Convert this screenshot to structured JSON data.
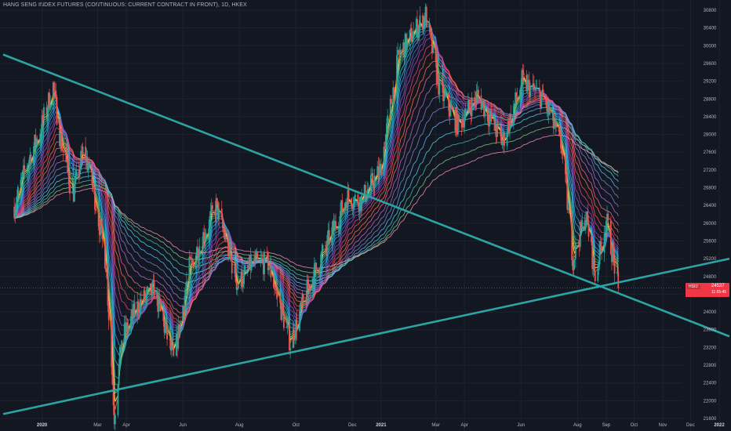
{
  "title": "HANG SENG INDEX FUTURES (CONTINUOUS: CURRENT CONTRACT IN FRONT), 1D, HKEX",
  "colors": {
    "background": "#131722",
    "grid": "#1e222d",
    "up": "#26a69a",
    "down": "#ef5350",
    "trendline": "#2ca4a4",
    "axis_text": "#b2b5be",
    "price_line": "#f23645"
  },
  "current_price": {
    "symbol": "HSI1!",
    "value": "24537",
    "countdown": "11:55:45",
    "level": 24537
  },
  "chart_data": {
    "type": "candlestick",
    "title": "HANG SENG INDEX FUTURES (CONTINUOUS: CURRENT CONTRACT IN FRONT), 1D, HKEX",
    "ylim": [
      21600,
      30850
    ],
    "y_ticks": [
      21600,
      22000,
      22400,
      22800,
      23200,
      23600,
      24000,
      24400,
      24800,
      25200,
      25600,
      26000,
      26400,
      26800,
      27200,
      27600,
      28000,
      28400,
      28800,
      29200,
      29600,
      30000,
      30400,
      30800
    ],
    "x_ticks": [
      "2020",
      "Mar",
      "Apr",
      "Jun",
      "Aug",
      "Oct",
      "Dec",
      "2021",
      "Mar",
      "Apr",
      "Jun",
      "Aug",
      "Sep",
      "Oct",
      "Nov",
      "Dec",
      "2022"
    ],
    "x_tick_dates": [
      "2020-01-01",
      "2020-03-01",
      "2020-04-01",
      "2020-06-01",
      "2020-08-01",
      "2020-10-01",
      "2020-12-01",
      "2021-01-01",
      "2021-03-01",
      "2021-04-01",
      "2021-06-01",
      "2021-08-01",
      "2021-09-01",
      "2021-10-01",
      "2021-11-01",
      "2021-12-01",
      "2022-01-01"
    ],
    "xlim": [
      "2019-11-20",
      "2022-01-12"
    ],
    "close_path": [
      [
        "2019-12-01",
        26300
      ],
      [
        "2019-12-15",
        27300
      ],
      [
        "2019-12-30",
        28100
      ],
      [
        "2020-01-13",
        29100
      ],
      [
        "2020-01-20",
        28000
      ],
      [
        "2020-02-03",
        26600
      ],
      [
        "2020-02-15",
        27700
      ],
      [
        "2020-02-25",
        26800
      ],
      [
        "2020-03-10",
        25100
      ],
      [
        "2020-03-19",
        21650
      ],
      [
        "2020-03-27",
        23400
      ],
      [
        "2020-04-15",
        24200
      ],
      [
        "2020-05-01",
        24500
      ],
      [
        "2020-05-22",
        22900
      ],
      [
        "2020-06-08",
        25000
      ],
      [
        "2020-07-07",
        26400
      ],
      [
        "2020-07-30",
        24600
      ],
      [
        "2020-08-15",
        25100
      ],
      [
        "2020-09-01",
        25100
      ],
      [
        "2020-09-25",
        23300
      ],
      [
        "2020-10-15",
        24600
      ],
      [
        "2020-11-05",
        25600
      ],
      [
        "2020-11-25",
        26600
      ],
      [
        "2020-12-10",
        26500
      ],
      [
        "2020-12-31",
        27200
      ],
      [
        "2021-01-20",
        29800
      ],
      [
        "2021-02-18",
        30700
      ],
      [
        "2021-03-05",
        29000
      ],
      [
        "2021-03-25",
        28200
      ],
      [
        "2021-04-15",
        28900
      ],
      [
        "2021-05-12",
        27800
      ],
      [
        "2021-06-02",
        29200
      ],
      [
        "2021-06-25",
        28800
      ],
      [
        "2021-07-15",
        27700
      ],
      [
        "2021-07-27",
        25200
      ],
      [
        "2021-08-10",
        26200
      ],
      [
        "2021-08-20",
        24800
      ],
      [
        "2021-09-01",
        26100
      ],
      [
        "2021-09-14",
        24537
      ]
    ],
    "trendlines": [
      {
        "points": [
          [
            "2019-11-20",
            29800
          ],
          [
            "2022-01-12",
            23450
          ]
        ]
      },
      {
        "points": [
          [
            "2019-11-20",
            21700
          ],
          [
            "2022-01-12",
            25200
          ]
        ]
      }
    ],
    "moving_average_ribbon": {
      "count": 24,
      "kind": "EMA",
      "shortest_period": 3,
      "longest_period": 200
    },
    "grid": true,
    "last_value": 24537
  }
}
